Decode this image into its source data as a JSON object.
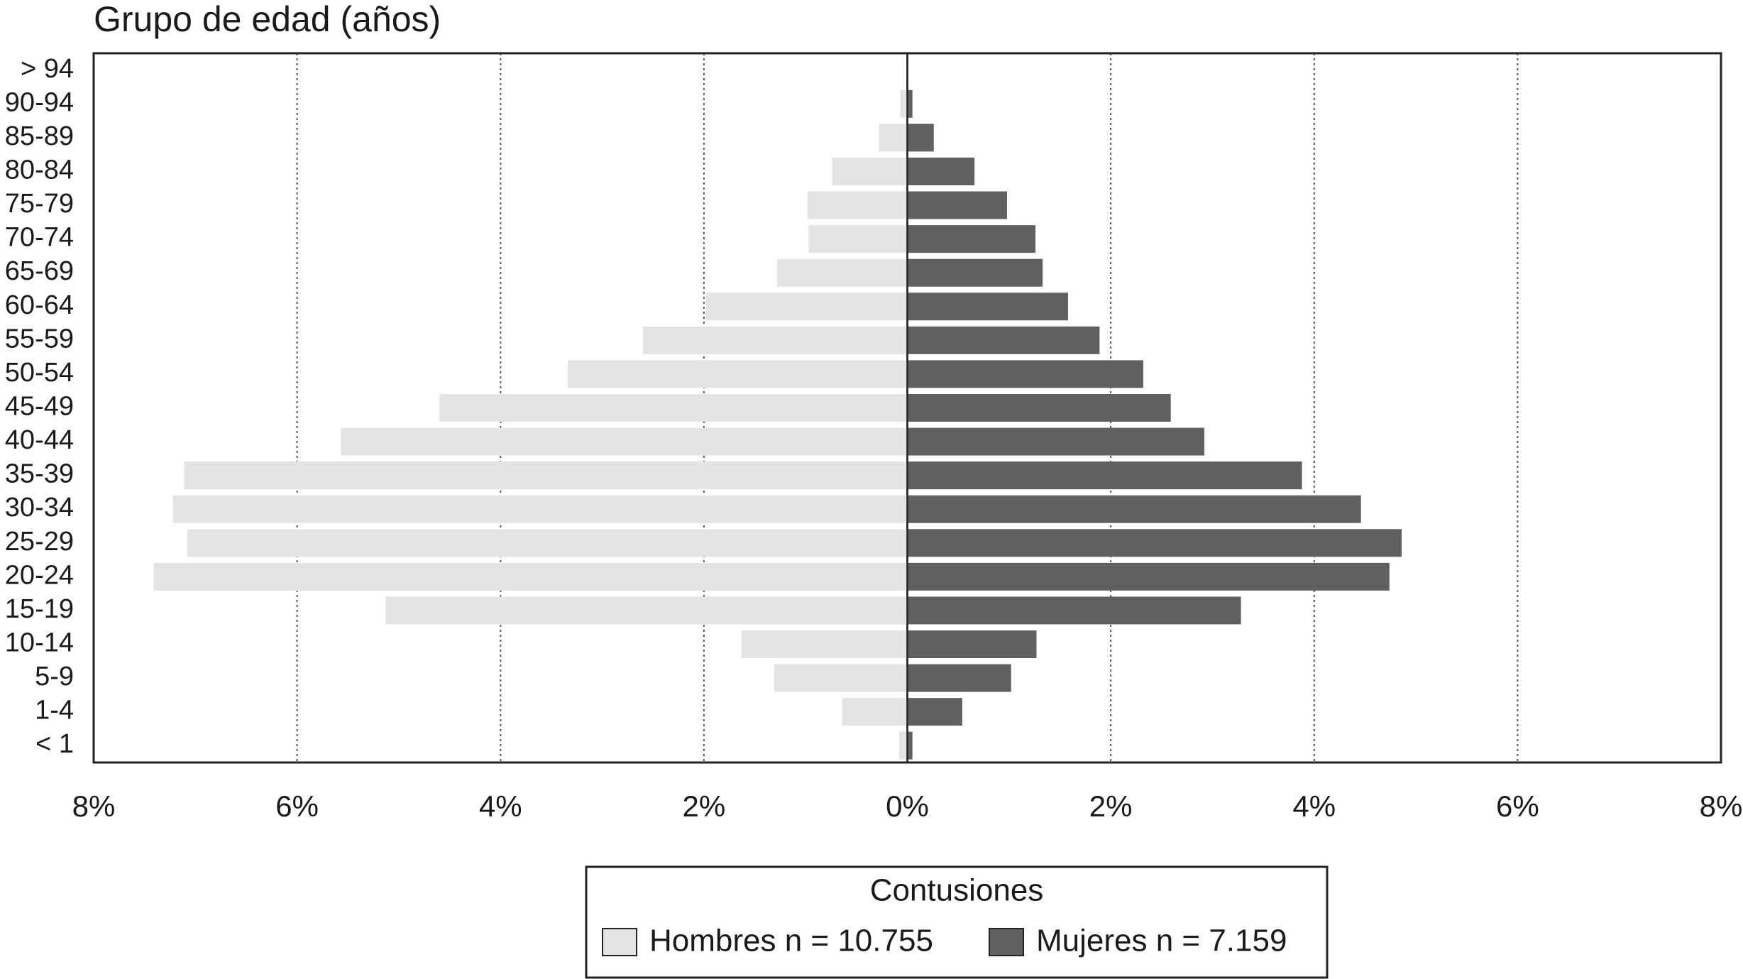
{
  "chart_data": {
    "type": "bar",
    "orientation": "horizontal",
    "title": "Grupo de edad (años)",
    "categories": [
      "> 94",
      "90-94",
      "85-89",
      "80-84",
      "75-79",
      "70-74",
      "65-69",
      "60-64",
      "55-59",
      "50-54",
      "45-49",
      "40-44",
      "35-39",
      "30-34",
      "25-29",
      "20-24",
      "15-19",
      "10-14",
      "5-9",
      "1-4",
      "< 1"
    ],
    "series": [
      {
        "name": "Hombres n = 10.755",
        "color": "#e3e4e5",
        "values": [
          0,
          -0.07,
          -0.28,
          -0.74,
          -0.98,
          -0.97,
          -1.28,
          -1.98,
          -2.6,
          -3.34,
          -4.6,
          -5.57,
          -7.11,
          -7.22,
          -7.08,
          -7.41,
          -5.13,
          -1.63,
          -1.31,
          -0.64,
          -0.08
        ]
      },
      {
        "name": "Mujeres n = 7.159",
        "color": "#5f6062",
        "values": [
          0,
          0.05,
          0.26,
          0.66,
          0.98,
          1.26,
          1.33,
          1.58,
          1.89,
          2.32,
          2.59,
          2.92,
          3.88,
          4.46,
          4.86,
          4.74,
          3.28,
          1.27,
          1.02,
          0.54,
          0.05
        ]
      }
    ],
    "xlim": [
      -8,
      8
    ],
    "xticks": [
      {
        "value": -8,
        "label": "8%"
      },
      {
        "value": -6,
        "label": "6%"
      },
      {
        "value": -4,
        "label": "4%"
      },
      {
        "value": -2,
        "label": "2%"
      },
      {
        "value": 0,
        "label": "0%"
      },
      {
        "value": 2,
        "label": "2%"
      },
      {
        "value": 4,
        "label": "4%"
      },
      {
        "value": 6,
        "label": "6%"
      },
      {
        "value": 8,
        "label": "8%"
      }
    ],
    "grid": true,
    "legend_title": "Contusiones",
    "legend_position": "bottom"
  }
}
